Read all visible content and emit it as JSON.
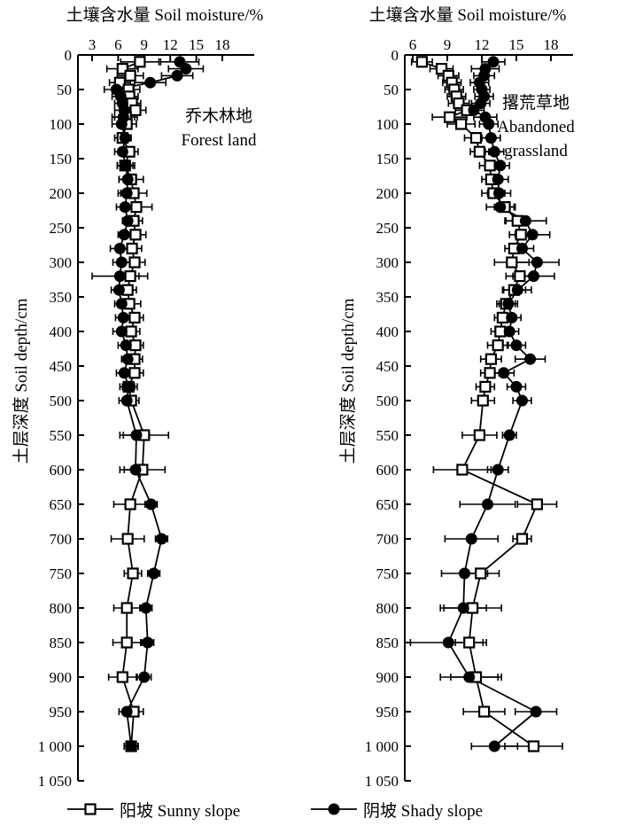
{
  "figure": {
    "x_axis_title": "土壤含水量 Soil moisture/%",
    "y_axis_title": "土层深度 Soil depth/cm",
    "colors": {
      "foreground": "#000000",
      "background": "#ffffff"
    },
    "legend": [
      {
        "label": "阳坡 Sunny slope",
        "marker": "open-square"
      },
      {
        "label": "阴坡 Shady slope",
        "marker": "filled-circle"
      }
    ]
  },
  "chart_data": [
    {
      "type": "line",
      "title": "乔木林地 Forest land — soil moisture profile",
      "panel_label": [
        "乔木林地",
        "Forest land"
      ],
      "xlabel": "土壤含水量 Soil moisture/%",
      "ylabel": "土层深度 Soil depth/cm",
      "x_ticks": [
        3,
        6,
        9,
        12,
        15,
        18
      ],
      "xlim": [
        1.4,
        21.5
      ],
      "ylim": [
        0,
        1050
      ],
      "y_tick_step": 50,
      "orientation": "depth profile, depth increases downward, error bars horizontal",
      "x": [
        10,
        20,
        30,
        40,
        50,
        60,
        70,
        80,
        90,
        100,
        120,
        140,
        160,
        180,
        200,
        220,
        240,
        260,
        280,
        300,
        320,
        340,
        360,
        380,
        400,
        420,
        440,
        460,
        480,
        500,
        550,
        600,
        650,
        700,
        750,
        800,
        850,
        900,
        950,
        1000
      ],
      "series": [
        {
          "name": "阳坡 Sunny slope",
          "marker": "open-square",
          "values": [
            8.5,
            6.5,
            7.4,
            6.2,
            7.2,
            7.3,
            7.6,
            8.0,
            6.9,
            7.0,
            6.5,
            7.3,
            6.8,
            7.5,
            7.8,
            8.1,
            7.8,
            8.0,
            7.6,
            7.9,
            7.4,
            7.1,
            7.3,
            7.9,
            7.5,
            8.0,
            7.9,
            7.9,
            7.2,
            7.5,
            9.0,
            8.8,
            7.4,
            7.1,
            7.7,
            7.0,
            7.0,
            6.5,
            7.8,
            7.5
          ],
          "errors": [
            2.2,
            1.8,
            1.5,
            1.2,
            1.3,
            1.0,
            1.0,
            1.2,
            1.3,
            1.1,
            0.9,
            1.0,
            0.9,
            1.4,
            1.5,
            1.8,
            1.0,
            1.2,
            1.1,
            1.2,
            1.0,
            1.0,
            1.3,
            1.0,
            1.0,
            0.9,
            0.9,
            1.0,
            1.0,
            0.9,
            2.8,
            2.6,
            1.9,
            1.9,
            1.0,
            1.5,
            1.6,
            1.6,
            1.1,
            0.8
          ]
        },
        {
          "name": "阴坡 Shady slope",
          "marker": "filled-circle",
          "values": [
            13.1,
            13.8,
            12.8,
            9.7,
            5.8,
            6.3,
            6.5,
            6.7,
            6.6,
            6.4,
            6.8,
            6.5,
            6.9,
            7.1,
            7.0,
            6.8,
            7.1,
            6.7,
            6.2,
            6.4,
            6.2,
            6.1,
            6.4,
            6.6,
            6.4,
            6.9,
            7.1,
            6.7,
            7.2,
            7.0,
            8.1,
            8.0,
            9.8,
            11.0,
            10.1,
            9.2,
            9.4,
            9.0,
            7.0,
            7.5
          ],
          "errors": [
            2.2,
            2.0,
            1.8,
            1.8,
            1.4,
            1.0,
            0.9,
            1.1,
            1.3,
            1.1,
            0.7,
            0.9,
            1.0,
            1.0,
            1.0,
            1.0,
            0.6,
            0.7,
            1.1,
            1.0,
            3.2,
            0.9,
            0.8,
            0.9,
            1.0,
            0.9,
            0.7,
            0.9,
            0.7,
            0.9,
            1.5,
            1.3,
            0.7,
            0.7,
            0.7,
            0.7,
            0.7,
            0.8,
            0.9,
            0.8
          ]
        }
      ]
    },
    {
      "type": "line",
      "title": "撂荒草地 Abandoned grassland — soil moisture profile",
      "panel_label": [
        "撂荒草地",
        "Abandoned",
        "grassland"
      ],
      "xlabel": "土壤含水量 Soil moisture/%",
      "ylabel": "土层深度 Soil depth/cm",
      "x_ticks": [
        6,
        9,
        12,
        15,
        18
      ],
      "xlim": [
        5.3,
        19.9
      ],
      "ylim": [
        0,
        1050
      ],
      "y_tick_step": 50,
      "orientation": "depth profile, depth increases downward, error bars horizontal",
      "x": [
        10,
        20,
        30,
        40,
        50,
        60,
        70,
        80,
        90,
        100,
        120,
        140,
        160,
        180,
        200,
        220,
        240,
        260,
        280,
        300,
        320,
        340,
        360,
        380,
        400,
        420,
        440,
        460,
        480,
        500,
        550,
        600,
        650,
        700,
        750,
        800,
        850,
        900,
        950,
        1000
      ],
      "series": [
        {
          "name": "阳坡 Sunny slope",
          "marker": "open-square",
          "values": [
            6.8,
            8.5,
            9.1,
            9.4,
            9.6,
            9.8,
            10.0,
            10.7,
            9.2,
            10.2,
            11.5,
            11.8,
            12.7,
            12.8,
            13.0,
            14.0,
            15.1,
            15.4,
            14.8,
            14.6,
            15.3,
            14.8,
            14.1,
            13.8,
            13.6,
            13.4,
            12.8,
            12.7,
            12.3,
            12.1,
            11.8,
            10.3,
            16.8,
            15.5,
            11.9,
            11.2,
            10.9,
            11.5,
            12.2,
            16.5
          ],
          "errors": [
            0.9,
            1.0,
            0.9,
            0.8,
            0.8,
            0.8,
            0.9,
            1.0,
            1.5,
            1.2,
            1.0,
            0.8,
            0.9,
            0.8,
            1.0,
            0.9,
            1.0,
            1.0,
            0.8,
            1.5,
            1.2,
            1.0,
            0.8,
            0.7,
            0.8,
            0.9,
            0.9,
            0.8,
            0.8,
            1.0,
            1.5,
            2.5,
            1.7,
            0.8,
            1.6,
            2.5,
            1.2,
            2.2,
            1.8,
            2.5
          ]
        },
        {
          "name": "阴坡 Shady slope",
          "marker": "filled-circle",
          "values": [
            13.0,
            12.3,
            12.2,
            11.8,
            12.0,
            12.2,
            11.9,
            11.3,
            12.3,
            12.6,
            12.8,
            13.1,
            13.6,
            13.4,
            13.5,
            13.6,
            15.8,
            16.4,
            15.5,
            16.8,
            16.5,
            15.1,
            14.3,
            14.6,
            14.4,
            15.0,
            16.2,
            13.9,
            15.0,
            15.5,
            14.4,
            13.4,
            12.5,
            11.1,
            10.5,
            10.4,
            9.1,
            10.9,
            16.7,
            13.1
          ],
          "errors": [
            1.0,
            1.2,
            0.9,
            0.8,
            0.7,
            0.8,
            0.8,
            0.9,
            1.0,
            0.8,
            0.8,
            0.8,
            0.8,
            0.9,
            1.0,
            1.2,
            1.8,
            1.5,
            1.0,
            1.9,
            1.8,
            1.2,
            0.8,
            0.8,
            0.8,
            0.8,
            1.3,
            0.9,
            0.8,
            0.8,
            0.6,
            0.9,
            2.4,
            2.3,
            2.0,
            2.0,
            3.3,
            2.5,
            1.8,
            2.0
          ]
        }
      ]
    }
  ]
}
